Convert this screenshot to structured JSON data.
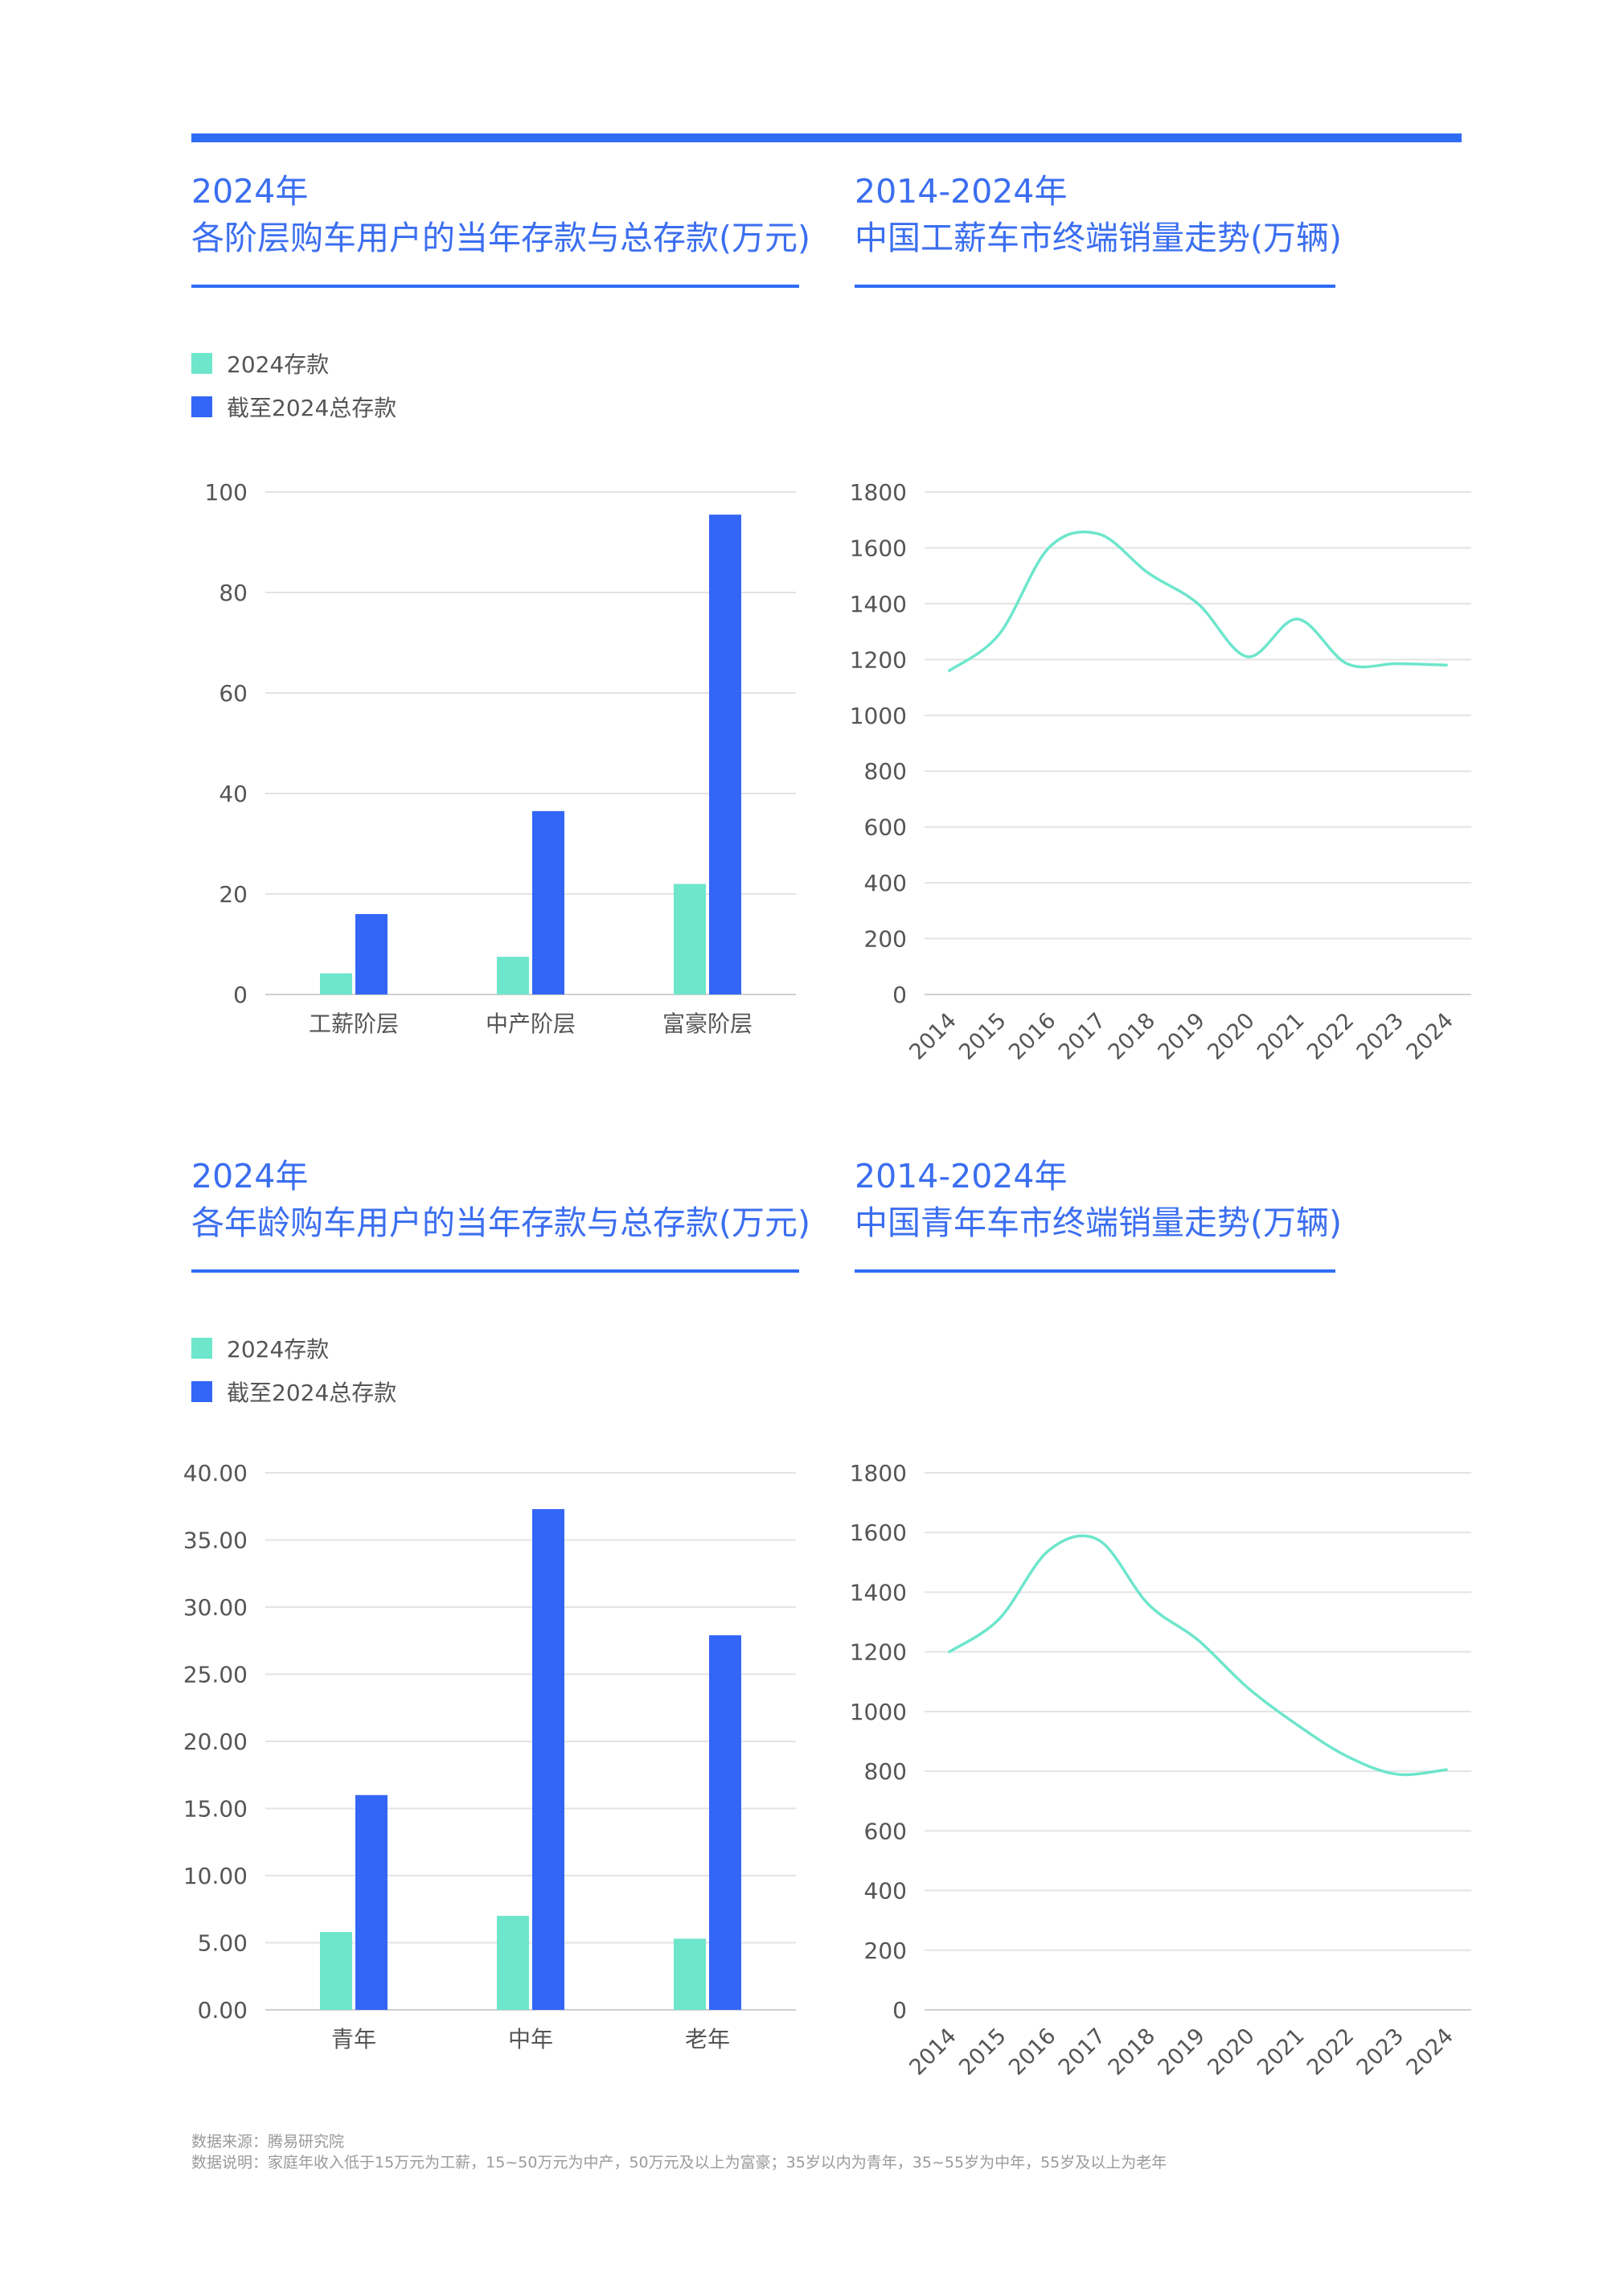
{
  "colors": {
    "accent": "#2f6cf5",
    "series_2024": "#6de6cb",
    "series_total": "#3366f6",
    "grid": "#e3e3e3",
    "line": "#6de6cb"
  },
  "panels": [
    {
      "title_line1": "2024年",
      "title_line2": "各阶层购车用户的当年存款与总存款(万元)"
    },
    {
      "title_line1": "2014-2024年",
      "title_line2": "中国工薪车市终端销量走势(万辆)"
    },
    {
      "title_line1": "2024年",
      "title_line2": "各年龄购车用户的当年存款与总存款(万元)"
    },
    {
      "title_line1": "2014-2024年",
      "title_line2": "中国青年车市终端销量走势(万辆)"
    }
  ],
  "legend_top": {
    "item1": "2024存款",
    "item2": "截至2024总存款"
  },
  "legend_bottom": {
    "item1": "2024存款",
    "item2": "截至2024总存款"
  },
  "footnote": {
    "line1": "数据来源：腾易研究院",
    "line2": "数据说明：家庭年收入低于15万元为工薪，15~50万元为中产，50万元及以上为富豪；35岁以内为青年，35~55岁为中年，55岁及以上为老年"
  },
  "chart_data": [
    {
      "type": "bar",
      "title": "各阶层购车用户的当年存款与总存款(万元)",
      "categories": [
        "工薪阶层",
        "中产阶层",
        "富豪阶层"
      ],
      "series": [
        {
          "name": "2024存款",
          "values": [
            4.2,
            7.5,
            22
          ]
        },
        {
          "name": "截至2024总存款",
          "values": [
            16,
            36.5,
            95.5
          ]
        }
      ],
      "ylim": [
        0,
        100
      ],
      "yticks": [
        "0",
        "20",
        "40",
        "60",
        "80",
        "100"
      ],
      "ytick_values": [
        0,
        20,
        40,
        60,
        80,
        100
      ],
      "grid": true,
      "legend": "top-left"
    },
    {
      "type": "line",
      "title": "中国工薪车市终端销量走势(万辆)",
      "x": [
        "2014",
        "2015",
        "2016",
        "2017",
        "2018",
        "2019",
        "2020",
        "2021",
        "2022",
        "2023",
        "2024"
      ],
      "series": [
        {
          "values": [
            1160,
            1290,
            1600,
            1650,
            1510,
            1400,
            1210,
            1345,
            1185,
            1185,
            1180
          ]
        }
      ],
      "ylim": [
        0,
        1800
      ],
      "yticks": [
        "0",
        "200",
        "400",
        "600",
        "800",
        "1000",
        "1200",
        "1400",
        "1600",
        "1800"
      ],
      "ytick_values": [
        0,
        200,
        400,
        600,
        800,
        1000,
        1200,
        1400,
        1600,
        1800
      ],
      "grid": true
    },
    {
      "type": "bar",
      "title": "各年龄购车用户的当年存款与总存款(万元)",
      "categories": [
        "青年",
        "中年",
        "老年"
      ],
      "series": [
        {
          "name": "2024存款",
          "values": [
            5.8,
            7.0,
            5.3
          ]
        },
        {
          "name": "截至2024总存款",
          "values": [
            16.0,
            37.3,
            27.9
          ]
        }
      ],
      "ylim": [
        0,
        40
      ],
      "yticks": [
        "0.00",
        "5.00",
        "10.00",
        "15.00",
        "20.00",
        "25.00",
        "30.00",
        "35.00",
        "40.00"
      ],
      "ytick_values": [
        0,
        5,
        10,
        15,
        20,
        25,
        30,
        35,
        40
      ],
      "grid": true,
      "legend": "top-left"
    },
    {
      "type": "line",
      "title": "中国青年车市终端销量走势(万辆)",
      "x": [
        "2014",
        "2015",
        "2016",
        "2017",
        "2018",
        "2019",
        "2020",
        "2021",
        "2022",
        "2023",
        "2024"
      ],
      "series": [
        {
          "values": [
            1200,
            1310,
            1540,
            1575,
            1360,
            1240,
            1080,
            955,
            850,
            790,
            805
          ]
        }
      ],
      "ylim": [
        0,
        1800
      ],
      "yticks": [
        "0",
        "200",
        "400",
        "600",
        "800",
        "1000",
        "1200",
        "1400",
        "1600",
        "1800"
      ],
      "ytick_values": [
        0,
        200,
        400,
        600,
        800,
        1000,
        1200,
        1400,
        1600,
        1800
      ],
      "grid": true
    }
  ]
}
